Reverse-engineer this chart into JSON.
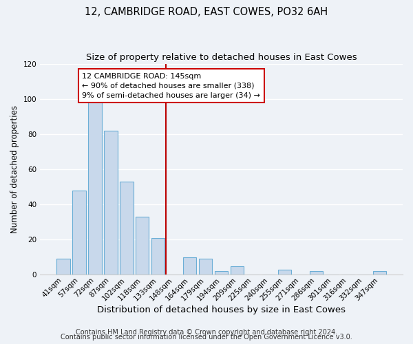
{
  "title": "12, CAMBRIDGE ROAD, EAST COWES, PO32 6AH",
  "subtitle": "Size of property relative to detached houses in East Cowes",
  "xlabel": "Distribution of detached houses by size in East Cowes",
  "ylabel": "Number of detached properties",
  "bar_labels": [
    "41sqm",
    "57sqm",
    "72sqm",
    "87sqm",
    "102sqm",
    "118sqm",
    "133sqm",
    "148sqm",
    "164sqm",
    "179sqm",
    "194sqm",
    "209sqm",
    "225sqm",
    "240sqm",
    "255sqm",
    "271sqm",
    "286sqm",
    "301sqm",
    "316sqm",
    "332sqm",
    "347sqm"
  ],
  "bar_heights": [
    9,
    48,
    100,
    82,
    53,
    33,
    21,
    0,
    10,
    9,
    2,
    5,
    0,
    0,
    3,
    0,
    2,
    0,
    0,
    0,
    2
  ],
  "bar_color": "#c8d8eb",
  "bar_edge_color": "#6baed6",
  "vline_color": "#bb0000",
  "annotation_title": "12 CAMBRIDGE ROAD: 145sqm",
  "annotation_line1": "← 90% of detached houses are smaller (338)",
  "annotation_line2": "9% of semi-detached houses are larger (34) →",
  "annotation_box_color": "#ffffff",
  "annotation_box_edge": "#cc0000",
  "ylim": [
    0,
    120
  ],
  "footer1": "Contains HM Land Registry data © Crown copyright and database right 2024.",
  "footer2": "Contains public sector information licensed under the Open Government Licence v3.0.",
  "background_color": "#eef2f7",
  "grid_color": "#ffffff",
  "spine_color": "#cccccc",
  "title_fontsize": 10.5,
  "subtitle_fontsize": 9.5,
  "xlabel_fontsize": 9.5,
  "ylabel_fontsize": 8.5,
  "tick_fontsize": 7.5,
  "annotation_fontsize": 8,
  "footer_fontsize": 7
}
